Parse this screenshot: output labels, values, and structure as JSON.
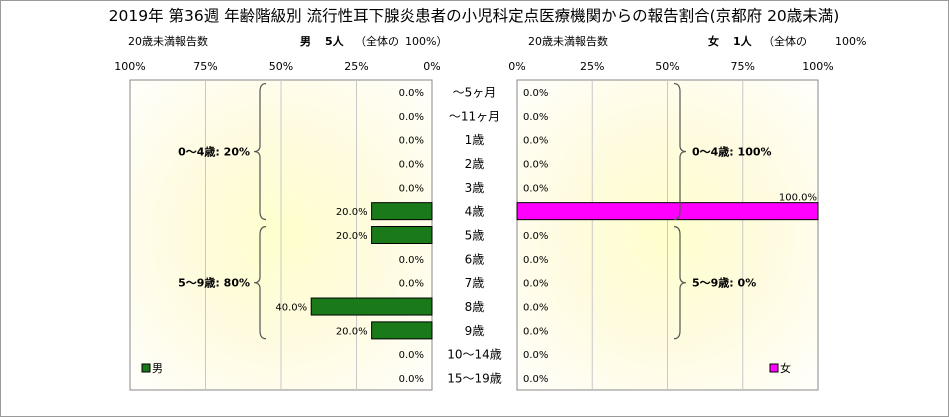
{
  "title": "2019年 第36週 年齢階級別 流行性耳下腺炎患者の小児科定点医療機関からの報告割合(京都府 20歳未満)",
  "colors": {
    "male_bar": "#1a7a1a",
    "female_bar": "#ff00ff",
    "panel_center": "#ffffd0"
  },
  "chart_data": [
    {
      "type": "bar",
      "orientation": "horizontal",
      "direction": "right-to-left",
      "panel_label": "20歳未満報告数",
      "summary_label": "男",
      "summary_count": "5人",
      "summary_note": "（全体の",
      "summary_pct": "100%）",
      "xlim": [
        0,
        100
      ],
      "xticks": [
        "100%",
        "75%",
        "50%",
        "25%",
        "0%"
      ],
      "legend": "男",
      "legend_position": "bottom-left",
      "categories": [
        "～5ヶ月",
        "～11ヶ月",
        "1歳",
        "2歳",
        "3歳",
        "4歳",
        "5歳",
        "6歳",
        "7歳",
        "8歳",
        "9歳",
        "10～14歳",
        "15～19歳"
      ],
      "values": [
        0,
        0,
        0,
        0,
        0,
        20,
        20,
        0,
        0,
        40,
        20,
        0,
        0
      ],
      "value_labels": [
        "0.0%",
        "0.0%",
        "0.0%",
        "0.0%",
        "0.0%",
        "20.0%",
        "20.0%",
        "0.0%",
        "0.0%",
        "40.0%",
        "20.0%",
        "0.0%",
        "0.0%"
      ],
      "groups": [
        {
          "label": "0～4歳: 20%",
          "from": 0,
          "to": 5
        },
        {
          "label": "5～9歳: 80%",
          "from": 6,
          "to": 10
        }
      ]
    },
    {
      "type": "bar",
      "orientation": "horizontal",
      "direction": "left-to-right",
      "panel_label": "20歳未満報告数",
      "summary_label": "女",
      "summary_count": "1人",
      "summary_note": "（全体の",
      "summary_pct": "100%",
      "xlim": [
        0,
        100
      ],
      "xticks": [
        "0%",
        "25%",
        "50%",
        "75%",
        "100%"
      ],
      "legend": "女",
      "legend_position": "bottom-right",
      "categories": [
        "～5ヶ月",
        "～11ヶ月",
        "1歳",
        "2歳",
        "3歳",
        "4歳",
        "5歳",
        "6歳",
        "7歳",
        "8歳",
        "9歳",
        "10～14歳",
        "15～19歳"
      ],
      "values": [
        0,
        0,
        0,
        0,
        0,
        100,
        0,
        0,
        0,
        0,
        0,
        0,
        0
      ],
      "value_labels": [
        "0.0%",
        "0.0%",
        "0.0%",
        "0.0%",
        "0.0%",
        "100.0%",
        "0.0%",
        "0.0%",
        "0.0%",
        "0.0%",
        "0.0%",
        "0.0%",
        "0.0%"
      ],
      "groups": [
        {
          "label": "0～4歳: 100%",
          "from": 0,
          "to": 5
        },
        {
          "label": "5～9歳: 0%",
          "from": 6,
          "to": 10
        }
      ]
    }
  ]
}
